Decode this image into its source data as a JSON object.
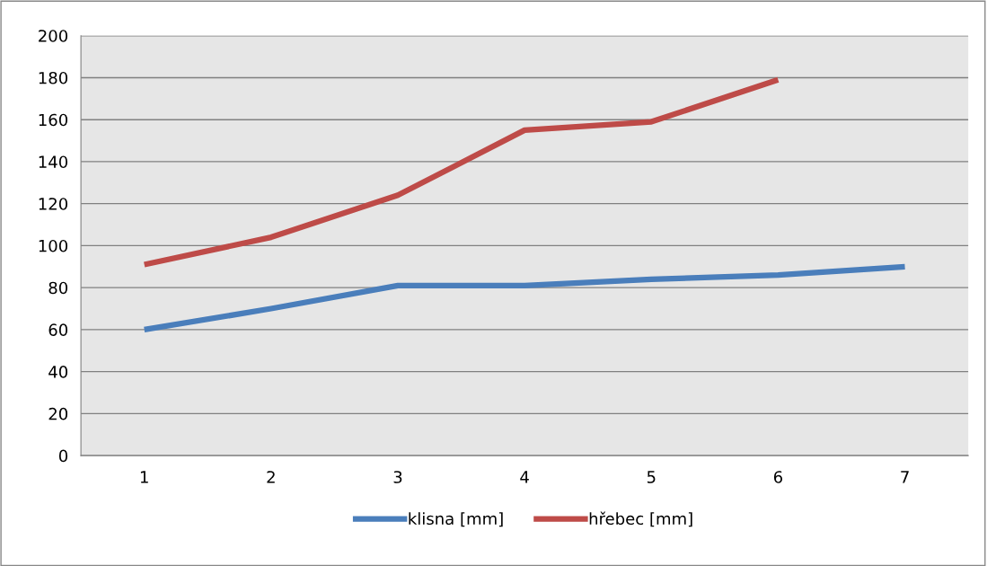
{
  "chart_data": {
    "type": "line",
    "categories": [
      "1",
      "2",
      "3",
      "4",
      "5",
      "6",
      "7"
    ],
    "series": [
      {
        "name": "klisna [mm]",
        "color": "#4a7ebb",
        "values": [
          60,
          70,
          81,
          81,
          84,
          86,
          90
        ]
      },
      {
        "name": "hřebec [mm]",
        "color": "#be4b48",
        "values": [
          91,
          104,
          124,
          155,
          159,
          179,
          null
        ]
      }
    ],
    "ylim": [
      0,
      200
    ],
    "yticks": [
      0,
      20,
      40,
      60,
      80,
      100,
      120,
      140,
      160,
      180,
      200
    ],
    "grid": "y",
    "legend": "bottom",
    "marker": "none",
    "line_style": "solid"
  }
}
